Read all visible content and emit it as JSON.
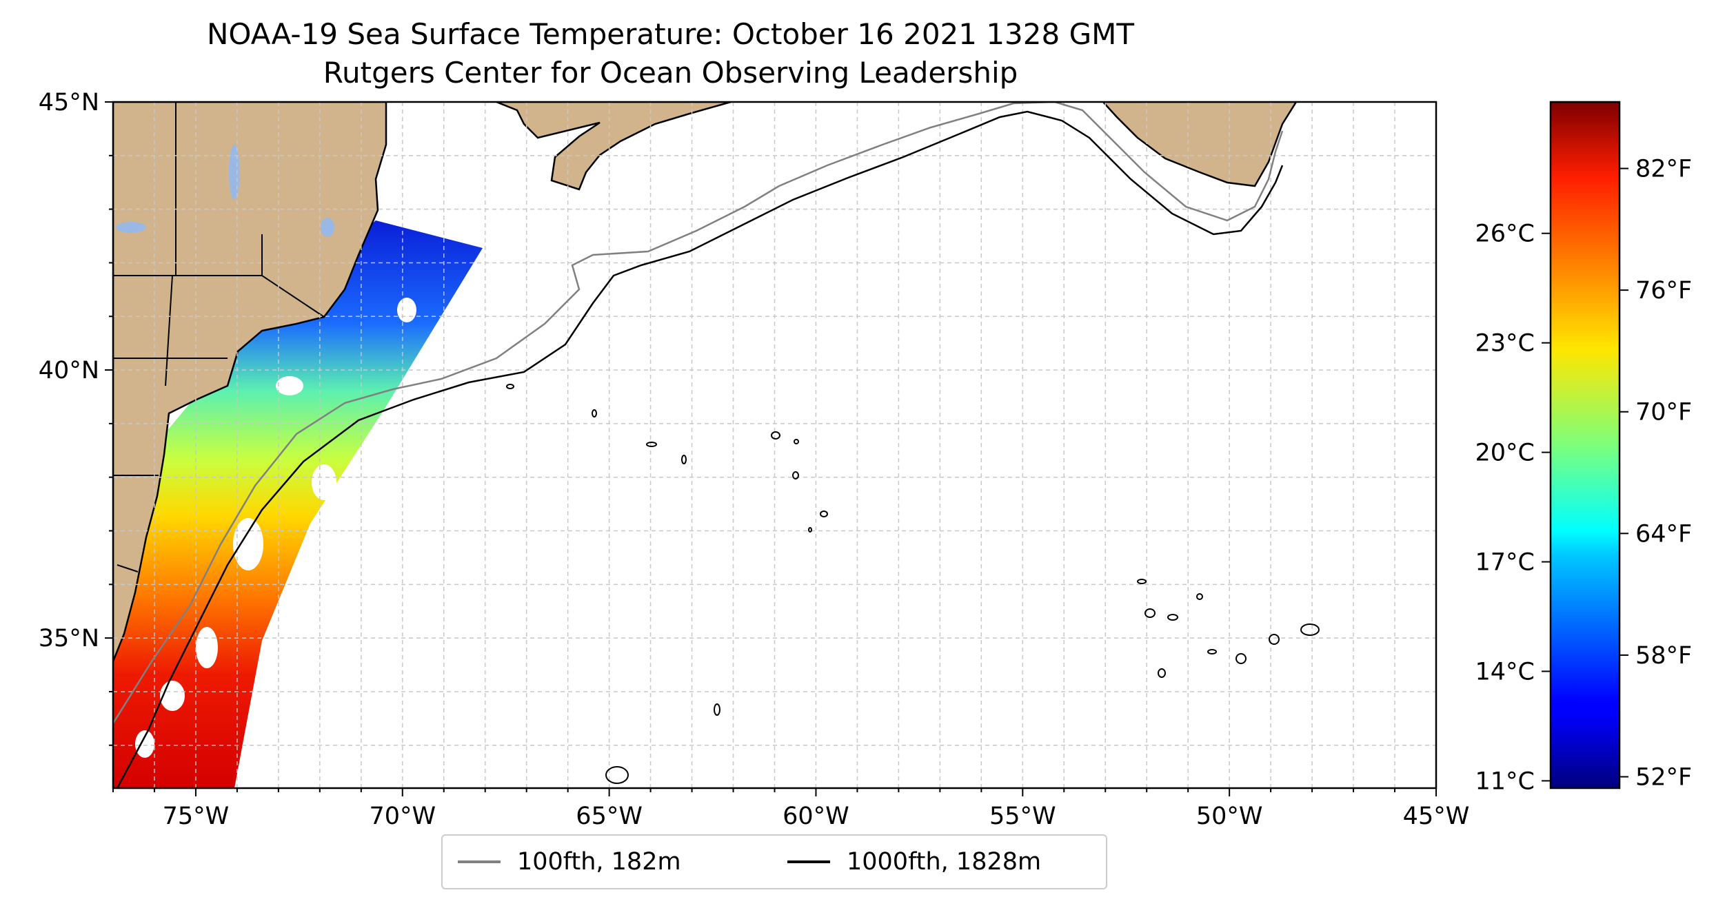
{
  "title": {
    "line1": "NOAA-19 Sea Surface Temperature: October 16 2021 1328 GMT",
    "line2": "Rutgers Center for Ocean Observing Leadership"
  },
  "map": {
    "extent": {
      "lon_min": -77,
      "lon_max": -45,
      "lat_min": 32.2,
      "lat_max": 45
    },
    "x_ticks": [
      {
        "lon": -75,
        "label": "75°W"
      },
      {
        "lon": -70,
        "label": "70°W"
      },
      {
        "lon": -65,
        "label": "65°W"
      },
      {
        "lon": -60,
        "label": "60°W"
      },
      {
        "lon": -55,
        "label": "55°W"
      },
      {
        "lon": -50,
        "label": "50°W"
      },
      {
        "lon": -45,
        "label": "45°W"
      }
    ],
    "y_ticks": [
      {
        "lat": 35,
        "label": "35°N"
      },
      {
        "lat": 40,
        "label": "40°N"
      },
      {
        "lat": 45,
        "label": "45°N"
      }
    ],
    "grid": true,
    "grid_step_deg": 1,
    "colors": {
      "land": "#d2b48c",
      "lakes": "#9ab8e4",
      "isobath_100": "#808080",
      "isobath_1000": "#000000",
      "grid": "#c8c8c8"
    }
  },
  "legend": {
    "placement": "bottom-center",
    "items": [
      {
        "label": "100fth, 182m",
        "color": "#808080"
      },
      {
        "label": "1000fth, 1828m",
        "color": "#000000"
      }
    ]
  },
  "colorbar": {
    "colormap": "jet",
    "range_c": [
      10.8,
      29.6
    ],
    "celsius_ticks": [
      {
        "value": 11,
        "label": "11°C"
      },
      {
        "value": 14,
        "label": "14°C"
      },
      {
        "value": 17,
        "label": "17°C"
      },
      {
        "value": 20,
        "label": "20°C"
      },
      {
        "value": 23,
        "label": "23°C"
      },
      {
        "value": 26,
        "label": "26°C"
      }
    ],
    "fahrenheit_ticks": [
      {
        "value": 52,
        "label": "52°F"
      },
      {
        "value": 58,
        "label": "58°F"
      },
      {
        "value": 64,
        "label": "64°F"
      },
      {
        "value": 70,
        "label": "70°F"
      },
      {
        "value": 76,
        "label": "76°F"
      },
      {
        "value": 82,
        "label": "82°F"
      }
    ]
  }
}
